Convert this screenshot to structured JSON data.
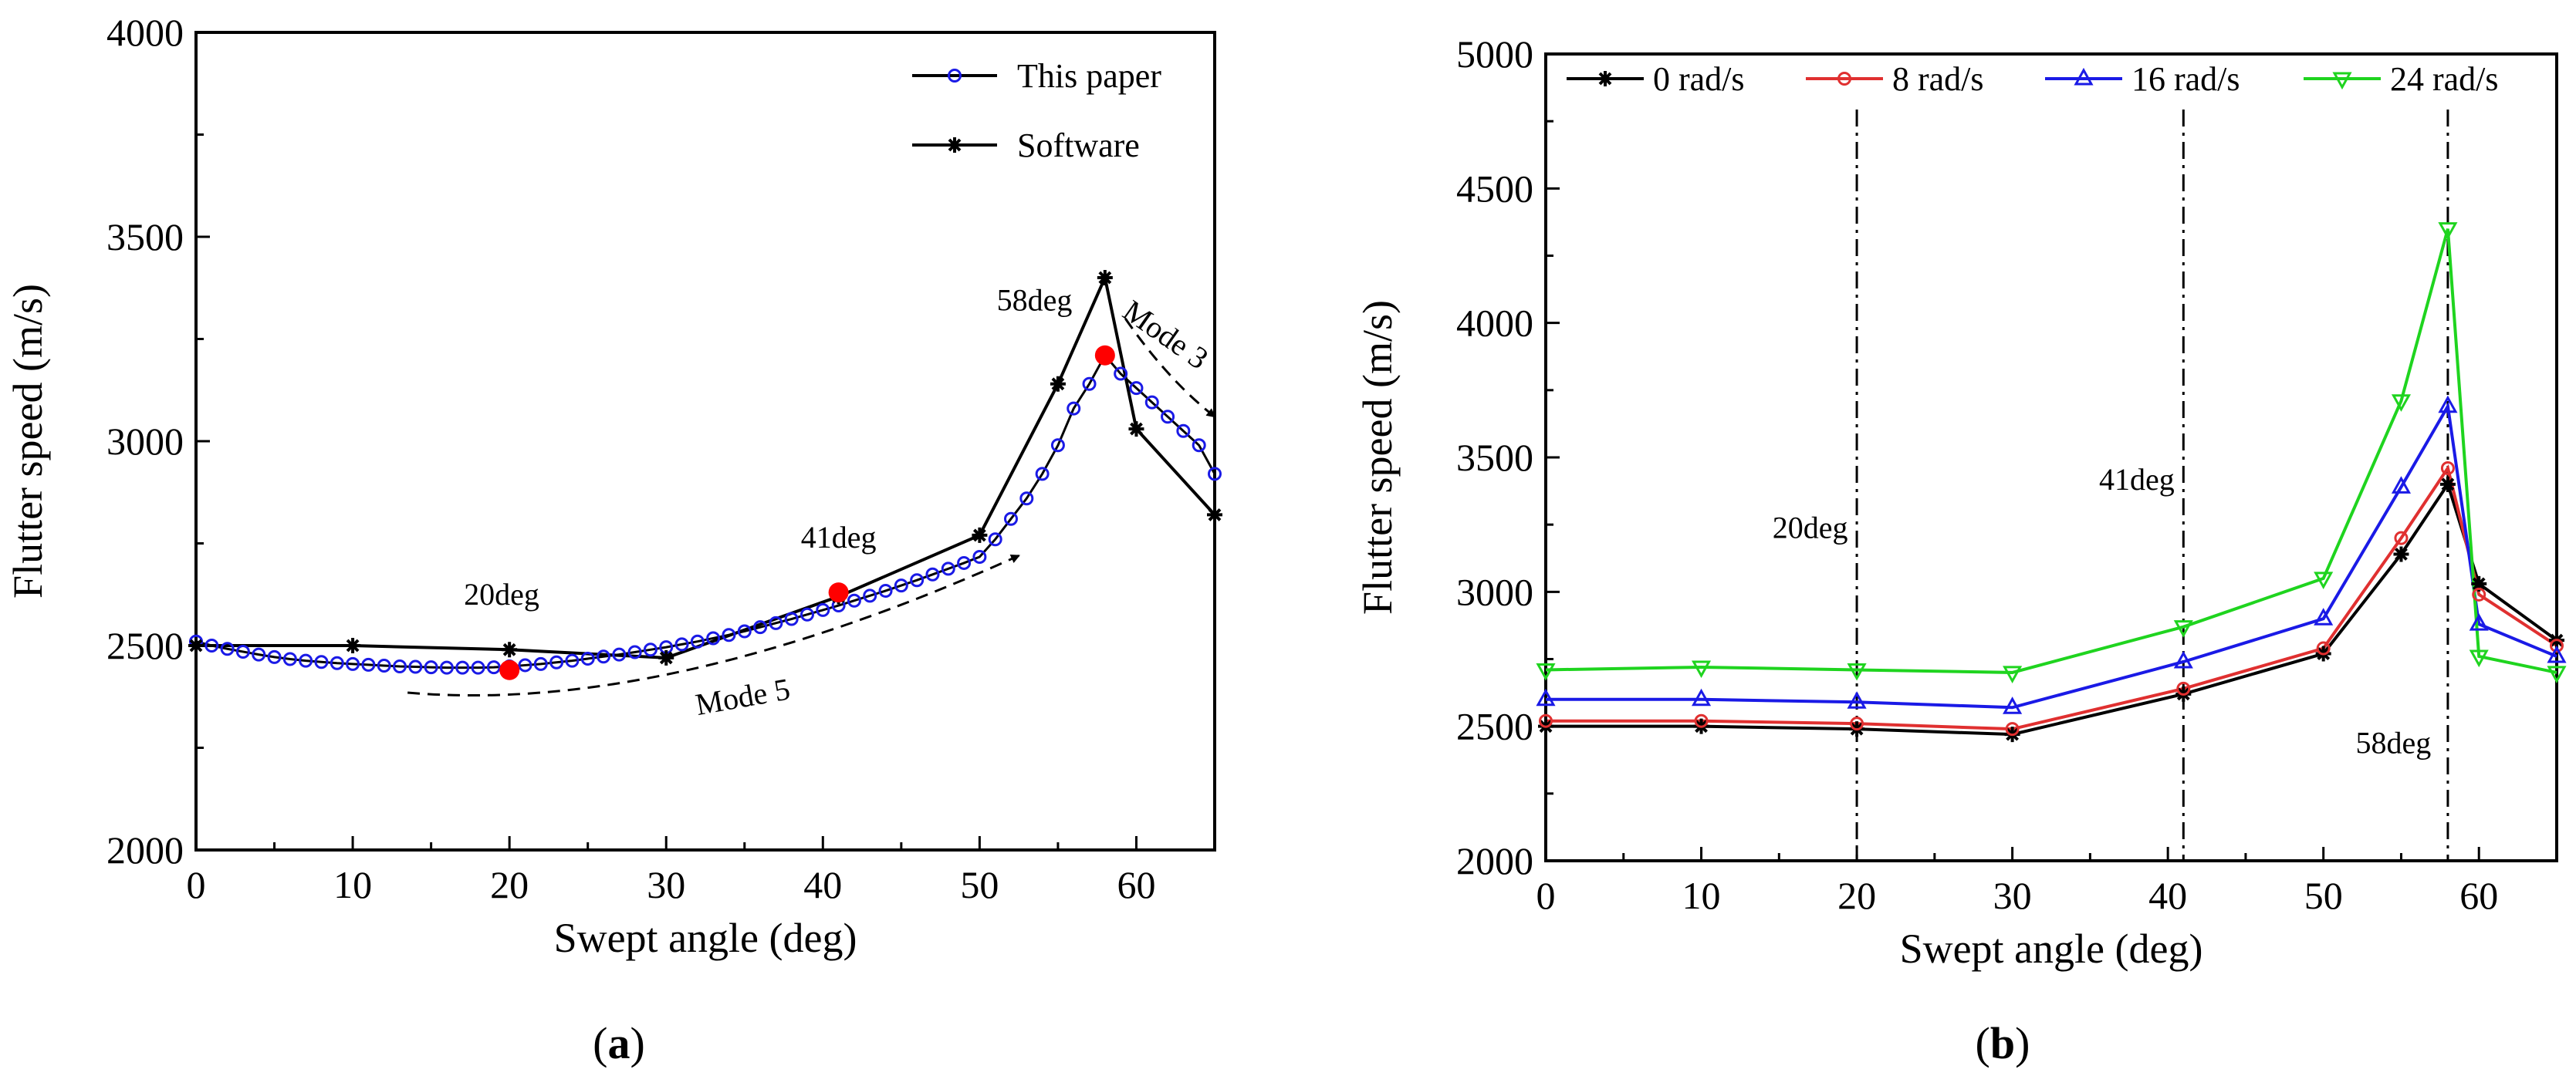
{
  "chart_data": [
    {
      "id": "a",
      "type": "line",
      "panel_label": "a",
      "xlabel": "Swept angle (deg)",
      "ylabel": "Flutter speed (m/s)",
      "xlim": [
        0,
        65
      ],
      "ylim": [
        2000,
        4000
      ],
      "xticks": [
        0,
        10,
        20,
        30,
        40,
        50,
        60
      ],
      "yticks": [
        2000,
        2500,
        3000,
        3500,
        4000
      ],
      "legend": "top-right",
      "series": [
        {
          "name": "This paper",
          "color": "#000000",
          "marker_color": "#1a1ae6",
          "marker": "open-circle",
          "x": [
            0,
            1,
            2,
            3,
            4,
            5,
            6,
            7,
            8,
            9,
            10,
            11,
            12,
            13,
            14,
            15,
            16,
            17,
            18,
            19,
            20,
            21,
            22,
            23,
            24,
            25,
            26,
            27,
            28,
            29,
            30,
            31,
            32,
            33,
            34,
            35,
            36,
            37,
            38,
            39,
            40,
            41,
            42,
            43,
            44,
            45,
            46,
            47,
            48,
            49,
            50,
            51,
            52,
            53,
            54,
            55,
            56,
            57,
            58,
            59,
            60,
            61,
            62,
            63,
            64,
            65
          ],
          "y": [
            2510,
            2500,
            2492,
            2485,
            2478,
            2472,
            2467,
            2463,
            2460,
            2457,
            2455,
            2453,
            2451,
            2449,
            2448,
            2447,
            2446,
            2446,
            2446,
            2447,
            2449,
            2452,
            2455,
            2459,
            2463,
            2468,
            2473,
            2478,
            2484,
            2490,
            2496,
            2503,
            2510,
            2518,
            2526,
            2535,
            2545,
            2555,
            2565,
            2576,
            2587,
            2598,
            2610,
            2622,
            2634,
            2647,
            2660,
            2674,
            2688,
            2702,
            2717,
            2760,
            2810,
            2860,
            2920,
            2990,
            3080,
            3140,
            3210,
            3165,
            3130,
            3095,
            3060,
            3025,
            2990,
            2920
          ]
        },
        {
          "name": "Software",
          "color": "#000000",
          "marker": "asterisk",
          "x": [
            0,
            10,
            20,
            30,
            41,
            50,
            55,
            58,
            60,
            65
          ],
          "y": [
            2500,
            2500,
            2490,
            2470,
            2620,
            2770,
            3140,
            3400,
            3030,
            2820
          ]
        }
      ],
      "highlight_points": {
        "color": "#ff0000",
        "x": [
          20,
          41,
          58
        ],
        "y": [
          2440,
          2630,
          3210
        ]
      },
      "annotations": [
        {
          "text": "20deg",
          "x": 19.5,
          "y": 2600
        },
        {
          "text": "41deg",
          "x": 41,
          "y": 2740
        },
        {
          "text": "58deg",
          "x": 53.5,
          "y": 3320
        },
        {
          "text": "Mode 5",
          "x": 35,
          "y": 2350
        },
        {
          "text": "Mode 3",
          "x": 61.5,
          "y": 3240
        }
      ]
    },
    {
      "id": "b",
      "type": "line",
      "panel_label": "b",
      "xlabel": "Swept angle (deg)",
      "ylabel": "Flutter speed (m/s)",
      "xlim": [
        0,
        65
      ],
      "ylim": [
        2000,
        5000
      ],
      "xticks": [
        0,
        10,
        20,
        30,
        40,
        50,
        60
      ],
      "yticks": [
        2000,
        2500,
        3000,
        3500,
        4000,
        4500,
        5000
      ],
      "legend": "top",
      "x": [
        0,
        10,
        20,
        30,
        41,
        50,
        55,
        58,
        60,
        65
      ],
      "series": [
        {
          "name": "0 rad/s",
          "color": "#000000",
          "marker": "asterisk",
          "values": [
            2500,
            2500,
            2490,
            2470,
            2620,
            2770,
            3140,
            3400,
            3030,
            2820
          ]
        },
        {
          "name": "8 rad/s",
          "color": "#e03030",
          "marker": "open-circle",
          "values": [
            2520,
            2520,
            2510,
            2490,
            2640,
            2790,
            3200,
            3460,
            2990,
            2800
          ]
        },
        {
          "name": "16 rad/s",
          "color": "#1a1ae6",
          "marker": "open-triangle-up",
          "values": [
            2600,
            2600,
            2590,
            2570,
            2740,
            2900,
            3390,
            3690,
            2880,
            2760
          ]
        },
        {
          "name": "24 rad/s",
          "color": "#1fd41f",
          "marker": "open-triangle-down",
          "values": [
            2710,
            2720,
            2710,
            2700,
            2870,
            3050,
            3710,
            4350,
            2760,
            2700
          ]
        }
      ],
      "vlines": [
        20,
        41,
        58
      ],
      "annotations": [
        {
          "text": "20deg",
          "x": 17,
          "y": 3200
        },
        {
          "text": "41deg",
          "x": 38,
          "y": 3380
        },
        {
          "text": "58deg",
          "x": 54.5,
          "y": 2400
        }
      ]
    }
  ]
}
